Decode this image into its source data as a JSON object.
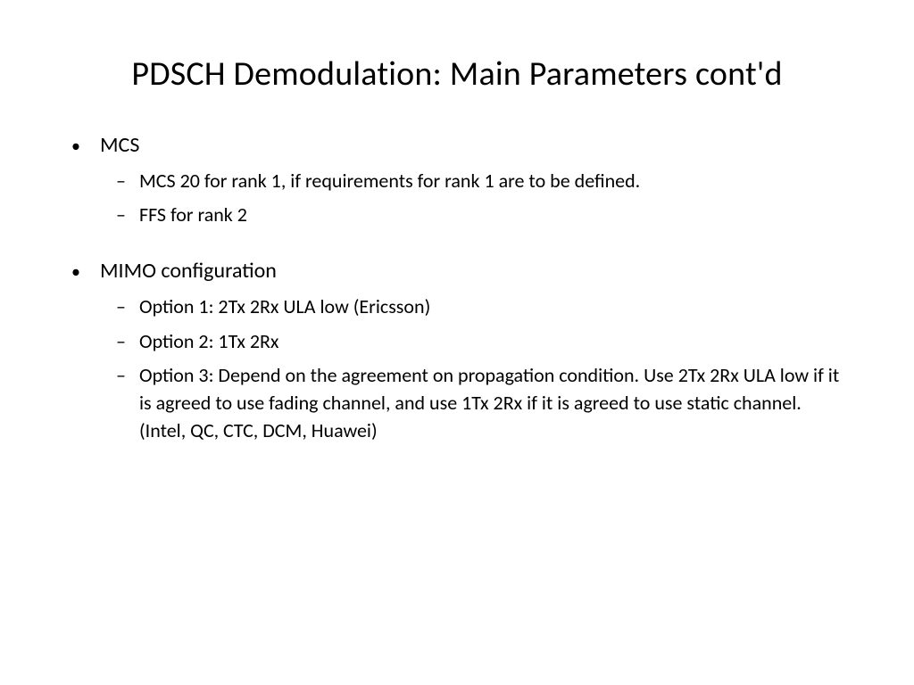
{
  "slide": {
    "title": "PDSCH Demodulation: Main Parameters cont'd",
    "background_color": "#ffffff",
    "text_color": "#000000",
    "title_fontsize": 38,
    "body_fontsize_l1": 24,
    "body_fontsize_l2": 22,
    "font_family": "Calibri",
    "sections": [
      {
        "heading": "MCS",
        "items": [
          "MCS 20 for rank 1, if requirements for rank 1 are to be defined.",
          "FFS for rank 2"
        ]
      },
      {
        "heading": "MIMO configuration",
        "items": [
          "Option 1: 2Tx 2Rx ULA low (Ericsson)",
          "Option 2: 1Tx 2Rx",
          "Option 3: Depend on the agreement on propagation condition. Use 2Tx 2Rx ULA low if it is agreed to use fading channel, and use 1Tx 2Rx if it is agreed to use static channel. (Intel, QC, CTC, DCM, Huawei)"
        ]
      }
    ]
  }
}
